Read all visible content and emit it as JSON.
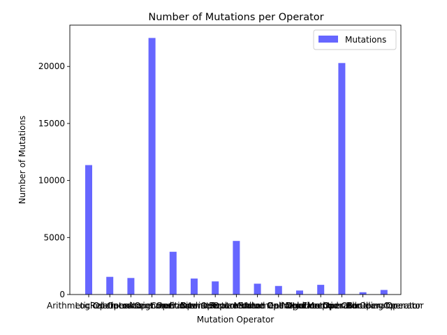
{
  "chart_data": {
    "type": "bar",
    "title": "Number of Mutations per Operator",
    "xlabel": "Mutation Operator",
    "ylabel": "Number of Mutations",
    "categories": [
      "Arithmetic Operator",
      "Logical Operator",
      "Relational Operator",
      "Increment Operator",
      "Assignment Operator",
      "Conditional Operator",
      "Bitwise Operator",
      "Constant Replacement Operator",
      "Return Value Operator",
      "Method Call Operator",
      "Statement Deletion Operator",
      "Negation Operator",
      "Void Method Call Operator",
      "Exception Handling Operator",
      "Boolean Operator"
    ],
    "series": [
      {
        "name": "Mutations",
        "color": "#6666ff",
        "values": [
          11350,
          1550,
          1450,
          22500,
          3750,
          1400,
          1150,
          4700,
          950,
          750,
          350,
          850,
          20300,
          200,
          400
        ]
      }
    ],
    "ylim": [
      0,
      23625
    ],
    "yticks": [
      0,
      5000,
      10000,
      15000,
      20000
    ],
    "legend": "top-right",
    "grid": false
  }
}
